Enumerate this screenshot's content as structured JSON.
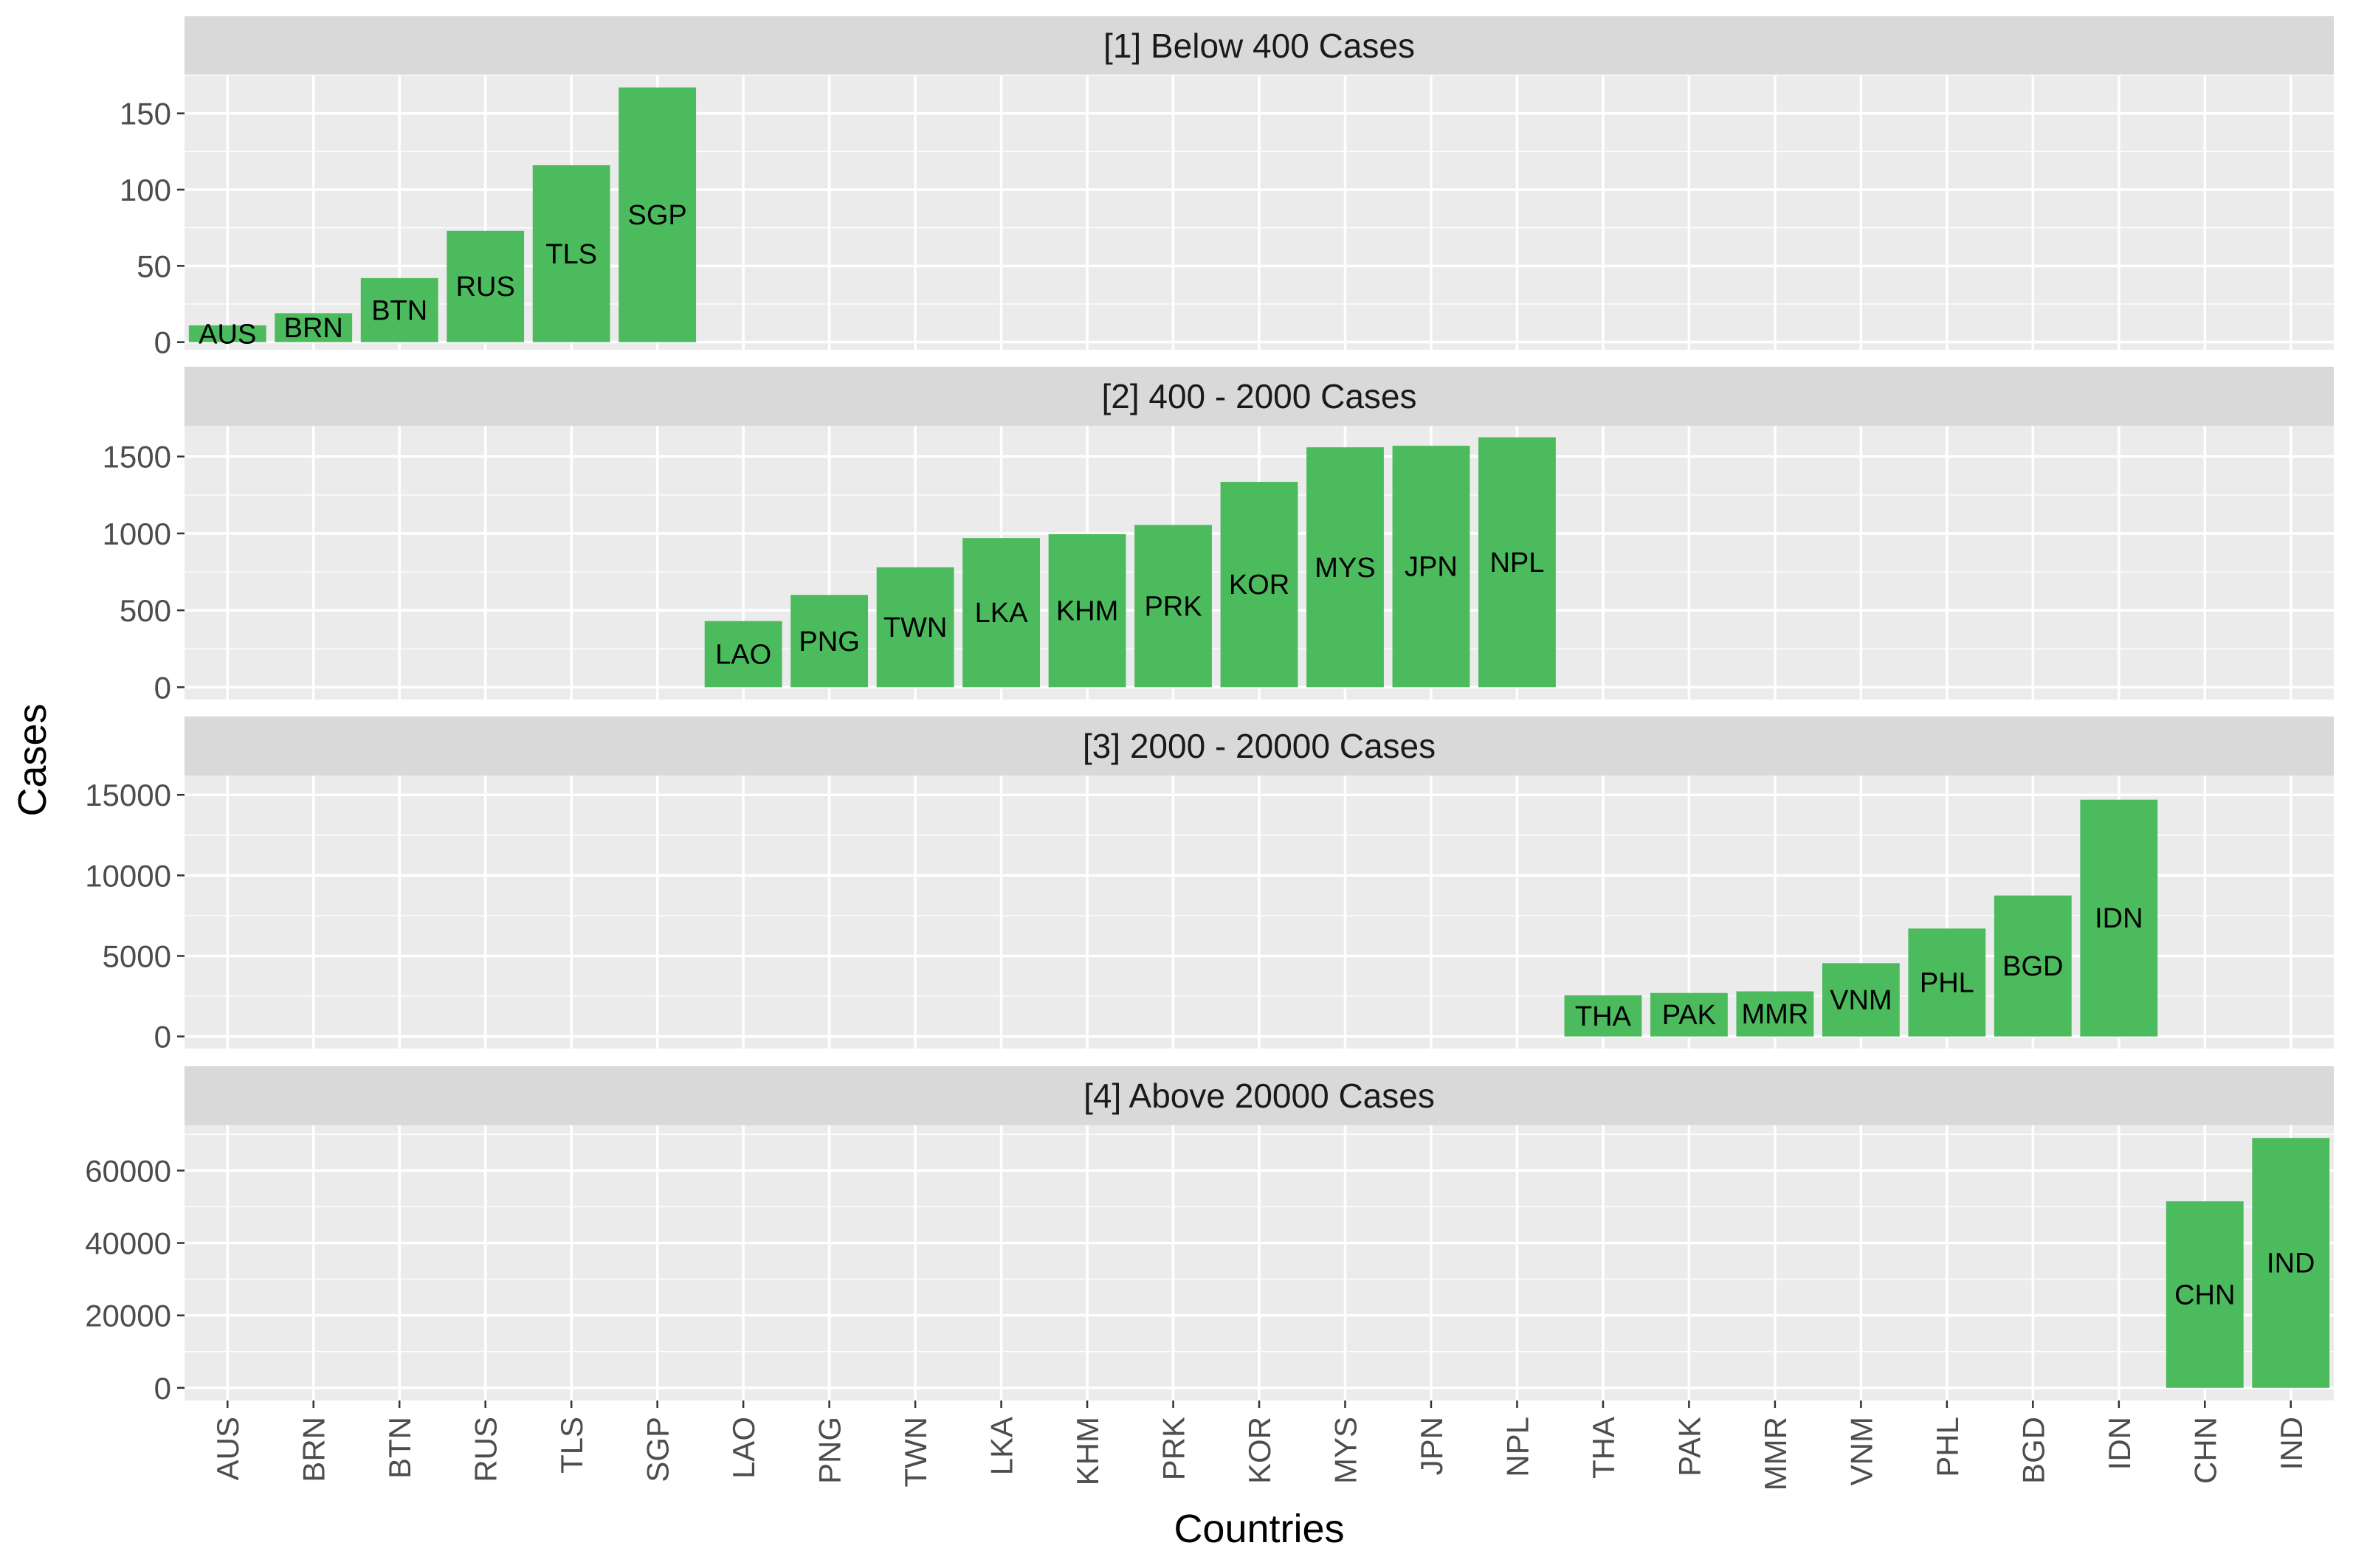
{
  "chart_data": {
    "type": "bar",
    "xlabel": "Countries",
    "ylabel": "Cases",
    "categories": [
      "AUS",
      "BRN",
      "BTN",
      "RUS",
      "TLS",
      "SGP",
      "LAO",
      "PNG",
      "TWN",
      "LKA",
      "KHM",
      "PRK",
      "KOR",
      "MYS",
      "JPN",
      "NPL",
      "THA",
      "PAK",
      "MMR",
      "VNM",
      "PHL",
      "BGD",
      "IDN",
      "CHN",
      "IND"
    ],
    "bar_color": "#4CBB5E",
    "panel_background": "#EBEBEB",
    "strip_background": "#D9D9D9",
    "grid": true,
    "legend": "none",
    "facets": [
      {
        "title": "[1] Below 400 Cases",
        "ylim": [
          -5,
          175
        ],
        "yticks": [
          0,
          50,
          100,
          150
        ],
        "bars": [
          {
            "category": "AUS",
            "value": 11
          },
          {
            "category": "BRN",
            "value": 19
          },
          {
            "category": "BTN",
            "value": 42
          },
          {
            "category": "RUS",
            "value": 73
          },
          {
            "category": "TLS",
            "value": 116
          },
          {
            "category": "SGP",
            "value": 167
          }
        ]
      },
      {
        "title": "[2] 400 - 2000 Cases",
        "ylim": [
          -80,
          1700
        ],
        "yticks": [
          0,
          500,
          1000,
          1500
        ],
        "bars": [
          {
            "category": "LAO",
            "value": 430
          },
          {
            "category": "PNG",
            "value": 600
          },
          {
            "category": "TWN",
            "value": 780
          },
          {
            "category": "LKA",
            "value": 970
          },
          {
            "category": "KHM",
            "value": 995
          },
          {
            "category": "PRK",
            "value": 1055
          },
          {
            "category": "KOR",
            "value": 1335
          },
          {
            "category": "MYS",
            "value": 1560
          },
          {
            "category": "JPN",
            "value": 1570
          },
          {
            "category": "NPL",
            "value": 1625
          }
        ]
      },
      {
        "title": "[3] 2000 - 20000 Cases",
        "ylim": [
          -750,
          16200
        ],
        "yticks": [
          0,
          5000,
          10000,
          15000
        ],
        "bars": [
          {
            "category": "THA",
            "value": 2550
          },
          {
            "category": "PAK",
            "value": 2700
          },
          {
            "category": "MMR",
            "value": 2800
          },
          {
            "category": "VNM",
            "value": 4550
          },
          {
            "category": "PHL",
            "value": 6700
          },
          {
            "category": "BGD",
            "value": 8750
          },
          {
            "category": "IDN",
            "value": 14700
          }
        ]
      },
      {
        "title": "[4] Above 20000 Cases",
        "ylim": [
          -3500,
          72500
        ],
        "yticks": [
          0,
          20000,
          40000,
          60000
        ],
        "bars": [
          {
            "category": "CHN",
            "value": 51500
          },
          {
            "category": "IND",
            "value": 69000
          }
        ]
      }
    ]
  }
}
